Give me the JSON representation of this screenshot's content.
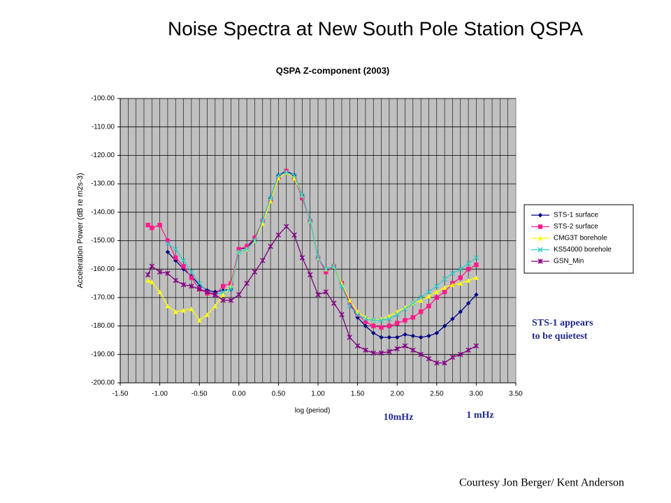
{
  "slide_title": "Noise Spectra at New South Pole Station QSPA",
  "chart_data": {
    "type": "line",
    "title": "QSPA Z-component  (2003)",
    "xlabel": "log (period)",
    "ylabel": "Acceleration Power (dB re m2s-3)",
    "x": [
      -1.15,
      -1.1,
      -1.0,
      -0.9,
      -0.8,
      -0.7,
      -0.6,
      -0.5,
      -0.4,
      -0.3,
      -0.2,
      -0.1,
      0.0,
      0.1,
      0.2,
      0.3,
      0.4,
      0.5,
      0.6,
      0.7,
      0.8,
      0.9,
      1.0,
      1.1,
      1.2,
      1.3,
      1.4,
      1.5,
      1.6,
      1.7,
      1.8,
      1.9,
      2.0,
      2.1,
      2.2,
      2.3,
      2.4,
      2.5,
      2.6,
      2.7,
      2.8,
      2.9,
      3.0
    ],
    "series": [
      {
        "name": "STS-1 surface",
        "color": "#000080",
        "marker": "diamond",
        "values": [
          null,
          null,
          null,
          -154,
          -157,
          -160,
          -162.5,
          -165.5,
          -167.5,
          -168,
          -167.5,
          -167,
          -153,
          -152.5,
          -149.5,
          -143,
          -135,
          -127,
          -125.5,
          -127,
          -134,
          -143,
          -156,
          -160,
          -159,
          -165,
          -172,
          -177,
          -180,
          -182.5,
          -184,
          -184,
          -184,
          -183,
          -183.5,
          -184,
          -183.5,
          -182.5,
          -180,
          -177.5,
          -175,
          -172,
          -169
        ]
      },
      {
        "name": "STS-2 surface",
        "color": "#ff1a8c",
        "marker": "square",
        "values": [
          -144.5,
          -145.5,
          -144.5,
          -150,
          -156,
          -159,
          -163,
          -167,
          -168.5,
          -169,
          -166,
          -165,
          -153,
          -152,
          -149,
          -143,
          -136,
          -128,
          -125.5,
          -128,
          -135,
          -143,
          -156,
          -161,
          -159,
          -165,
          -172,
          -176,
          -178.5,
          -180,
          -180.5,
          -180,
          -179,
          -178,
          -177,
          -175,
          -173,
          -170,
          -168,
          -165,
          -163,
          -160,
          -158.5
        ]
      },
      {
        "name": "CMG3T borehole",
        "color": "#ffff00",
        "marker": "triangle",
        "values": [
          -164,
          -164.5,
          -168,
          -173,
          -175,
          -174.5,
          -174,
          -178,
          -176,
          -173,
          -169,
          -166,
          -154,
          -153,
          -150,
          -144,
          -136,
          -128,
          -126,
          -128,
          -134,
          -143,
          -156,
          -160,
          -159,
          -165,
          -171,
          -175,
          -177,
          -178,
          -177.5,
          -176.5,
          -175,
          -173.5,
          -172,
          -171,
          -169.5,
          -168,
          -166.5,
          -165.5,
          -165,
          -164,
          -163
        ]
      },
      {
        "name": "KS54000 borehole",
        "color": "#33cccc",
        "marker": "x",
        "values": [
          null,
          null,
          null,
          -151,
          -153,
          -157,
          -161,
          -165,
          -168,
          -169,
          -168,
          -167,
          -154,
          -153,
          -150,
          -143,
          -135,
          -127,
          -126,
          -127,
          -134,
          -143,
          -156,
          -160,
          -159,
          -166,
          -173,
          -176,
          -177.5,
          -178,
          -178,
          -177.5,
          -176,
          -174,
          -172,
          -170,
          -168,
          -166,
          -163.5,
          -161.5,
          -160,
          -158,
          -156
        ]
      },
      {
        "name": "GSN_Min",
        "color": "#800080",
        "marker": "star",
        "values": [
          -162,
          -159,
          -161,
          -161.5,
          -164,
          -165.5,
          -166,
          -167,
          -168,
          -169,
          -171,
          -171,
          -169,
          -165,
          -161,
          -157,
          -152,
          -148,
          -145,
          -148,
          -156,
          -162,
          -169,
          -168,
          -172,
          -176,
          -184,
          -187,
          -188.5,
          -189.5,
          -189.5,
          -189,
          -188,
          -187,
          -188.5,
          -190,
          -191.5,
          -193,
          -193,
          -191,
          -190,
          -188.5,
          -187
        ]
      }
    ],
    "xlim": [
      -1.5,
      3.5
    ],
    "xticks": [
      {
        "value": -1.5,
        "label": "-1.50"
      },
      {
        "value": -1.0,
        "label": "-1.00"
      },
      {
        "value": -0.5,
        "label": "-0.50"
      },
      {
        "value": 0,
        "label": "0.00"
      },
      {
        "value": 0.5,
        "label": "0.50"
      },
      {
        "value": 1.0,
        "label": "1.00"
      },
      {
        "value": 1.5,
        "label": "1.50"
      },
      {
        "value": 2.0,
        "label": "2.00"
      },
      {
        "value": 2.5,
        "label": "2.50"
      },
      {
        "value": 3.0,
        "label": "3.00"
      },
      {
        "value": 3.5,
        "label": "3.50"
      }
    ],
    "ylim": [
      -200,
      -100
    ],
    "yticks": [
      {
        "value": -200,
        "label": "-200.00"
      },
      {
        "value": -190,
        "label": "-190.00"
      },
      {
        "value": -180,
        "label": "-180.00"
      },
      {
        "value": -170,
        "label": "-170.00"
      },
      {
        "value": -160,
        "label": "-160.00"
      },
      {
        "value": -150,
        "label": "-150.00"
      },
      {
        "value": -140,
        "label": "-140.00"
      },
      {
        "value": -130,
        "label": "-130.00"
      },
      {
        "value": -120,
        "label": "-120.00"
      },
      {
        "value": -110,
        "label": "-110.00"
      },
      {
        "value": -100,
        "label": "-100.00"
      }
    ],
    "grid": true,
    "legend": "right"
  },
  "annotations": {
    "note": [
      "STS-1 appears",
      "to be quietest"
    ],
    "freq_10": "10mHz",
    "freq_1": "1 mHz"
  },
  "credit": "Courtesy Jon Berger/ Kent Anderson"
}
